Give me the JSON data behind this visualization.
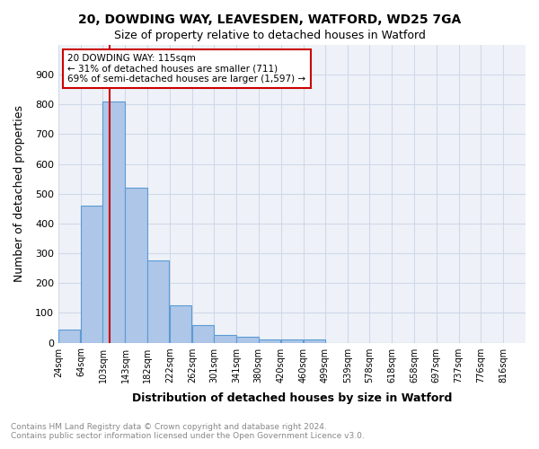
{
  "title1": "20, DOWDING WAY, LEAVESDEN, WATFORD, WD25 7GA",
  "title2": "Size of property relative to detached houses in Watford",
  "xlabel": "Distribution of detached houses by size in Watford",
  "ylabel": "Number of detached properties",
  "bin_labels": [
    "24sqm",
    "64sqm",
    "103sqm",
    "143sqm",
    "182sqm",
    "222sqm",
    "262sqm",
    "301sqm",
    "341sqm",
    "380sqm",
    "420sqm",
    "460sqm",
    "499sqm",
    "539sqm",
    "578sqm",
    "618sqm",
    "658sqm",
    "697sqm",
    "737sqm",
    "776sqm",
    "816sqm"
  ],
  "bar_heights": [
    45,
    460,
    810,
    520,
    275,
    125,
    60,
    25,
    20,
    12,
    12,
    10,
    0,
    0,
    0,
    0,
    0,
    0,
    0,
    0
  ],
  "bar_color": "#aec6e8",
  "bar_edge_color": "#5b9bd5",
  "property_line_x": 115,
  "property_sqm": "115sqm",
  "property_address": "20 DOWDING WAY",
  "annotation_line1": "20 DOWDING WAY: 115sqm",
  "annotation_line2": "← 31% of detached houses are smaller (711)",
  "annotation_line3": "69% of semi-detached houses are larger (1,597) →",
  "annotation_box_color": "#cc0000",
  "vline_color": "#cc0000",
  "ylim": [
    0,
    1000
  ],
  "yticks": [
    0,
    100,
    200,
    300,
    400,
    500,
    600,
    700,
    800,
    900,
    1000
  ],
  "grid_color": "#d0d8e8",
  "background_color": "#eef2f8",
  "footer1": "Contains HM Land Registry data © Crown copyright and database right 2024.",
  "footer2": "Contains public sector information licensed under the Open Government Licence v3.0.",
  "footer_color": "#888888"
}
